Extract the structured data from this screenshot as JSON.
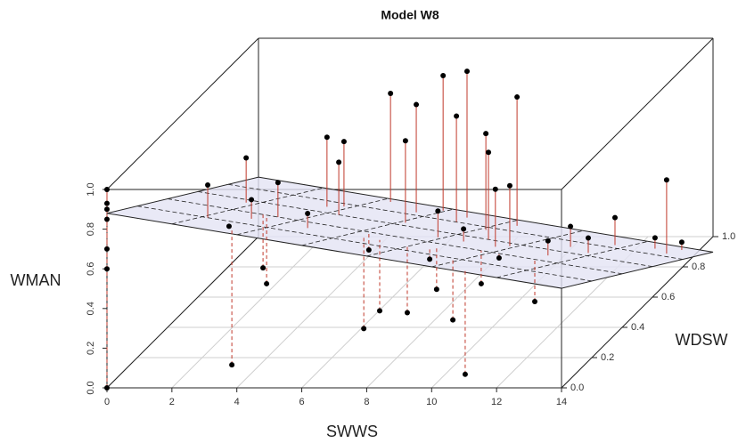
{
  "chart_data": {
    "type": "scatter3d",
    "title": "Model W8",
    "xlabel": "SWWS",
    "ylabel": "WDSW",
    "zlabel": "WMAN",
    "xlim": [
      0,
      14
    ],
    "ylim": [
      0,
      1
    ],
    "zlim": [
      0,
      1
    ],
    "xticks": [
      0,
      2,
      4,
      6,
      8,
      10,
      12,
      14
    ],
    "yticks": [
      {
        "value": 0,
        "label": "0.0"
      },
      0.2,
      0.4,
      0.6,
      0.8,
      {
        "value": 1,
        "label": "1.0"
      }
    ],
    "zticks": [
      {
        "value": 0,
        "label": "0.0"
      },
      0.2,
      0.4,
      0.6,
      0.8,
      {
        "value": 1,
        "label": "1.0"
      }
    ],
    "grid": true,
    "color": "#000000",
    "drop_line_color": "#c0392b",
    "plane_color": "#e4e4f4",
    "plane": {
      "intercept": 0.88,
      "x_coef": -0.027,
      "y_coef": -0.58
    },
    "points": {
      "x": [
        0,
        0,
        0,
        0,
        0,
        0,
        0,
        5.92,
        6.89,
        4.3,
        8.43,
        5.56,
        7.03,
        8.17,
        3.51,
        6.16,
        3.8,
        1.72,
        4.34,
        8.95,
        13.27,
        9.84,
        9.63,
        2.17,
        3.4,
        3.05,
        4.78,
        3.06,
        3.38,
        6.51,
        10.8,
        7.0,
        7.85,
        9.72,
        3.05,
        2.94,
        11.31,
        9.66,
        8.52,
        6.2,
        11.01,
        11.68,
        12.68,
        13.27,
        11.79,
        11.25,
        8.65,
        7.86,
        8.54,
        10.21
      ],
      "y": [
        0,
        0,
        0,
        0,
        0,
        0,
        0,
        0.95,
        0.9,
        0.95,
        0.9,
        0.85,
        0.8,
        0.75,
        0.7,
        0.65,
        0.75,
        0.55,
        0.6,
        0.6,
        0.85,
        0.55,
        0.5,
        0.2,
        0.4,
        0.3,
        0.3,
        0.15,
        0.1,
        0.3,
        0.05,
        0.3,
        0.3,
        0.2,
        0.4,
        0.4,
        0.4,
        0.4,
        0.35,
        0.4,
        0.7,
        0.85,
        0.9,
        0.95,
        0.65,
        0.5,
        0.5,
        0.5,
        0.3,
        0.4
      ],
      "z": [
        1.0,
        0.93,
        0.9,
        0.85,
        0.7,
        0.6,
        0.0,
        0.85,
        0.91,
        0.76,
        0.78,
        0.78,
        0.76,
        0.71,
        0.73,
        0.75,
        0.67,
        0.74,
        0.68,
        0.73,
        0.4,
        0.6,
        0.62,
        0.87,
        0.73,
        0.72,
        0.65,
        0.7,
        0.04,
        0.07,
        0.03,
        0.16,
        0.15,
        0.19,
        0.22,
        0.3,
        0.13,
        0.22,
        0.23,
        0.39,
        0.28,
        0.21,
        0.07,
        0.01,
        0.26,
        0.36,
        0.42,
        0.51,
        0.42,
        0.35
      ]
    }
  }
}
